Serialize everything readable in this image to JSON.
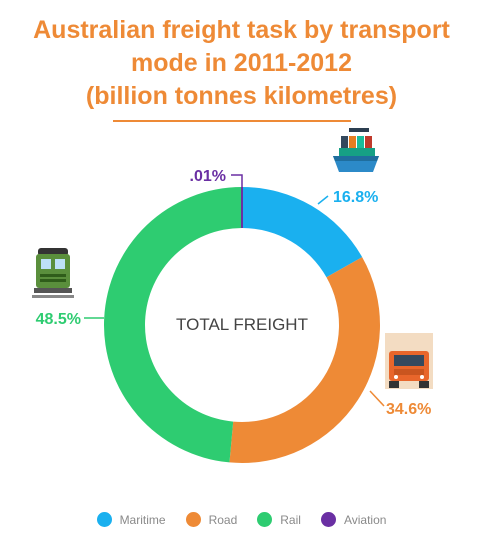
{
  "title_lines": [
    "Australian freight task by transport",
    "mode in 2011-2012",
    "(billion tonnes kilometres)"
  ],
  "center_label": "TOTAL FREIGHT",
  "colors": {
    "Maritime": "#1ab0ef",
    "Road": "#ee8a36",
    "Rail": "#2ecc71",
    "Aviation": "#6a2fa3"
  },
  "chart_data": {
    "type": "pie",
    "variant": "donut",
    "title": "Australian freight task by transport mode in 2011-2012 (billion tonnes kilometres)",
    "categories": [
      "Maritime",
      "Road",
      "Rail",
      "Aviation"
    ],
    "values": [
      16.8,
      34.6,
      48.5,
      0.01
    ],
    "data_labels": [
      "16.8%",
      "34.6%",
      "48.5%",
      ".01%"
    ],
    "legend": {
      "position": "bottom",
      "entries": [
        "Maritime",
        "Road",
        "Rail",
        "Aviation"
      ]
    }
  },
  "icons": {
    "Maritime": "ship-icon",
    "Road": "truck-icon",
    "Rail": "train-icon"
  }
}
